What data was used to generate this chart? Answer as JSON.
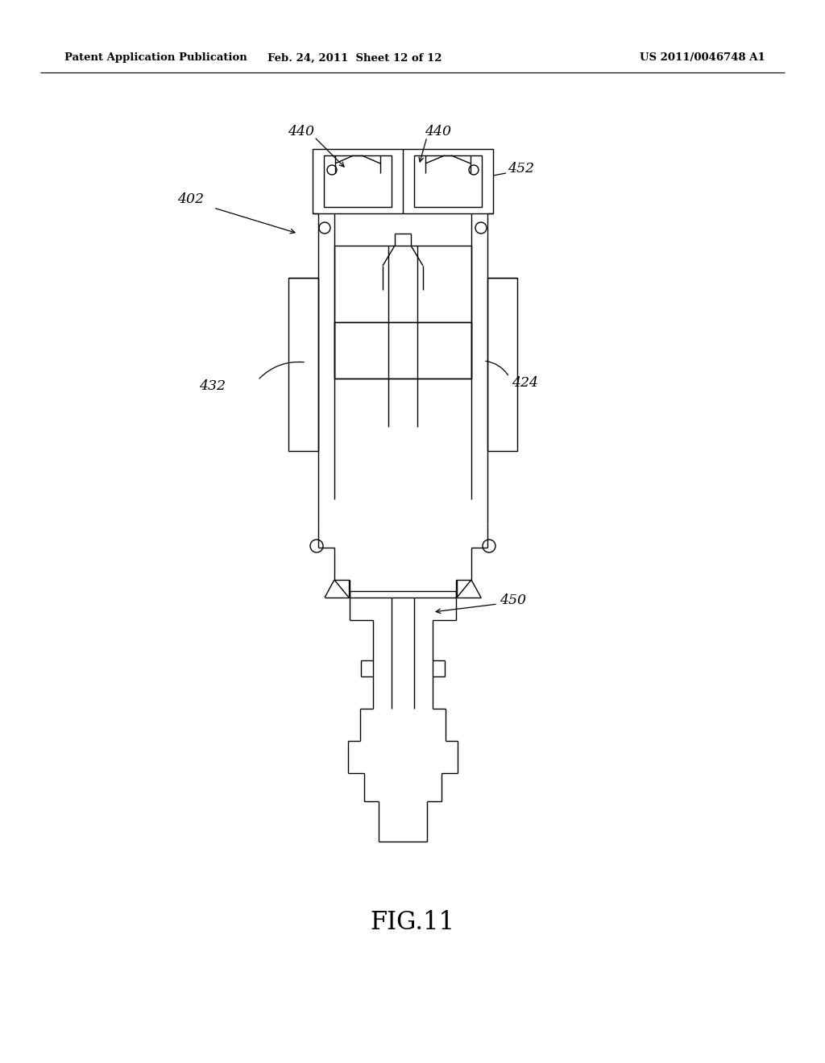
{
  "background_color": "#ffffff",
  "line_color": "#000000",
  "lw": 1.0,
  "header_left": "Patent Application Publication",
  "header_mid": "Feb. 24, 2011  Sheet 12 of 12",
  "header_right": "US 2011/0046748 A1",
  "figure_label": "FIG.11"
}
